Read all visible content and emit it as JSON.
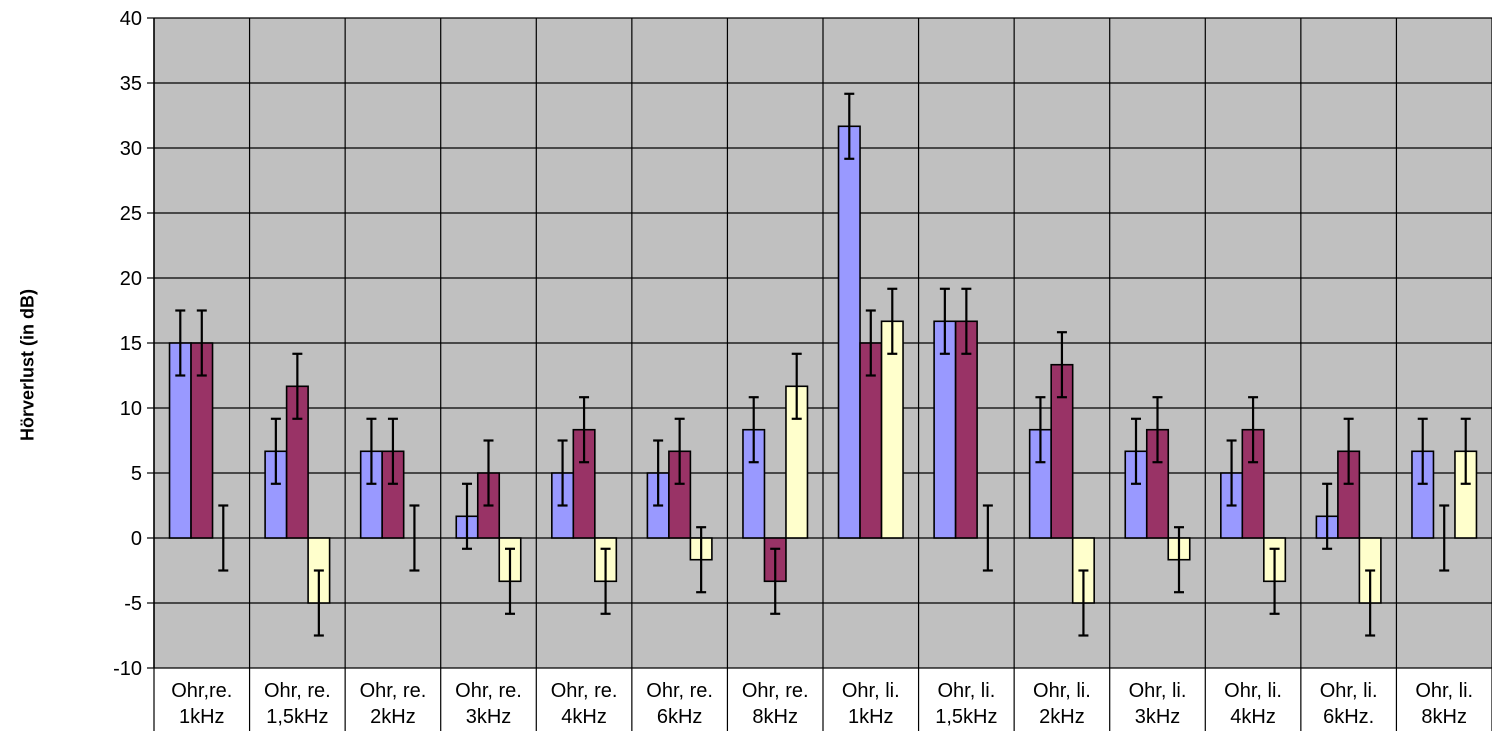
{
  "chart_data": {
    "type": "bar",
    "title": "",
    "xlabel": "",
    "ylabel": "Hörverlust (in dB)",
    "ylim": [
      -10,
      40
    ],
    "yticks": [
      -10,
      -5,
      0,
      5,
      10,
      15,
      20,
      25,
      30,
      35,
      40
    ],
    "grid": true,
    "legend": "none",
    "categories": [
      [
        "Ohr,re.",
        "1kHz"
      ],
      [
        "Ohr, re.",
        "1,5kHz"
      ],
      [
        "Ohr, re.",
        "2kHz"
      ],
      [
        "Ohr, re.",
        "3kHz"
      ],
      [
        "Ohr, re.",
        "4kHz"
      ],
      [
        "Ohr, re.",
        "6kHz"
      ],
      [
        "Ohr, re.",
        "8kHz"
      ],
      [
        "Ohr, li.",
        "1kHz"
      ],
      [
        "Ohr, li.",
        "1,5kHz"
      ],
      [
        "Ohr, li.",
        "2kHz"
      ],
      [
        "Ohr, li.",
        "3kHz"
      ],
      [
        "Ohr, li.",
        "4kHz"
      ],
      [
        "Ohr, li.",
        "6kHz."
      ],
      [
        "Ohr, li.",
        "8kHz"
      ]
    ],
    "error": 2.5,
    "series": [
      {
        "color": "#9999ff",
        "values": [
          15,
          6.67,
          6.67,
          1.67,
          5,
          5,
          8.33,
          31.67,
          16.67,
          8.33,
          6.67,
          5,
          1.67,
          6.67
        ]
      },
      {
        "color": "#993366",
        "values": [
          15,
          11.67,
          6.67,
          5,
          8.33,
          6.67,
          -3.33,
          15,
          16.67,
          13.33,
          8.33,
          8.33,
          6.67,
          0
        ]
      },
      {
        "color": "#ffffcc",
        "values": [
          0,
          -5,
          0,
          -3.33,
          -3.33,
          -1.67,
          11.67,
          16.67,
          0,
          -5,
          -1.67,
          -3.33,
          -5,
          6.67
        ]
      }
    ]
  },
  "colors": {
    "plot_background": "#c0c0c0",
    "grid": "#000000"
  }
}
